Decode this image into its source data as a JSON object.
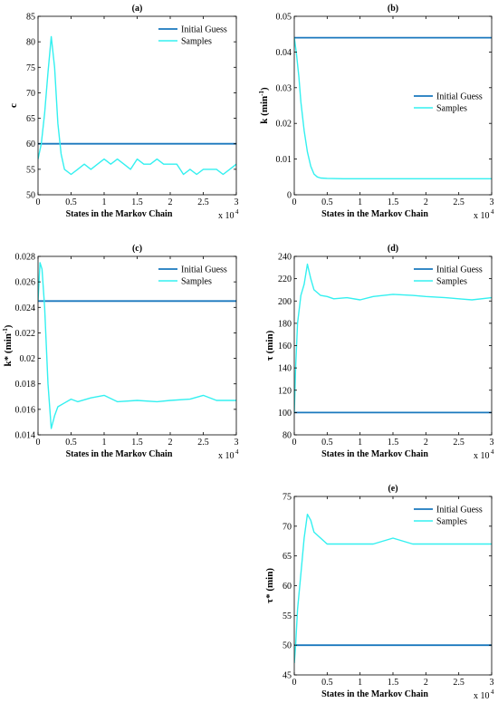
{
  "colors": {
    "initial_guess": "#1a78be",
    "samples": "#33f0f0",
    "axis": "#000000"
  },
  "chart_data": [
    {
      "type": "line",
      "title": "(a)",
      "xlabel": "States in the Markov Chain",
      "ylabel": "c",
      "x_multiplier": "x 10",
      "x_multiplier_exp": "4",
      "xlim": [
        0,
        3
      ],
      "ylim": [
        50,
        85
      ],
      "xticks": [
        "0",
        "0.5",
        "1",
        "1.5",
        "2",
        "2.5",
        "3"
      ],
      "yticks": [
        "50",
        "55",
        "60",
        "65",
        "70",
        "75",
        "80",
        "85"
      ],
      "legend_position": "top-right",
      "legend": [
        "Initial Guess",
        "Samples"
      ],
      "series": [
        {
          "name": "Initial Guess",
          "x": [
            0,
            3
          ],
          "y": [
            60,
            60
          ]
        },
        {
          "name": "Samples",
          "x": [
            0,
            0.05,
            0.1,
            0.15,
            0.2,
            0.25,
            0.3,
            0.35,
            0.4,
            0.5,
            0.6,
            0.7,
            0.8,
            0.9,
            1.0,
            1.1,
            1.2,
            1.3,
            1.4,
            1.5,
            1.6,
            1.7,
            1.8,
            1.9,
            2.0,
            2.1,
            2.2,
            2.3,
            2.4,
            2.5,
            2.6,
            2.7,
            2.8,
            2.9,
            3.0
          ],
          "y": [
            57,
            60,
            66,
            74,
            81,
            75,
            64,
            58,
            55,
            54,
            55,
            56,
            55,
            56,
            57,
            56,
            57,
            56,
            55,
            57,
            56,
            56,
            57,
            56,
            56,
            56,
            54,
            55,
            54,
            55,
            55,
            55,
            54,
            55,
            56
          ]
        }
      ]
    },
    {
      "type": "line",
      "title": "(b)",
      "xlabel": "States in the Markov Chain",
      "ylabel": "k (min",
      "ylabel_sup": "-1",
      "ylabel_end": ")",
      "x_multiplier": "x 10",
      "x_multiplier_exp": "4",
      "xlim": [
        0,
        3
      ],
      "ylim": [
        0,
        0.05
      ],
      "xticks": [
        "0",
        "0.5",
        "1",
        "1.5",
        "2",
        "2.5",
        "3"
      ],
      "yticks": [
        "0",
        "0.01",
        "0.02",
        "0.03",
        "0.04",
        "0.05"
      ],
      "legend_position": "middle-right",
      "legend": [
        "Initial Guess",
        "Samples"
      ],
      "series": [
        {
          "name": "Initial Guess",
          "x": [
            0,
            3
          ],
          "y": [
            0.044,
            0.044
          ]
        },
        {
          "name": "Samples",
          "x": [
            0,
            0.03,
            0.07,
            0.1,
            0.15,
            0.2,
            0.25,
            0.3,
            0.35,
            0.4,
            0.5,
            0.75,
            1.0,
            1.5,
            2.0,
            2.5,
            3.0
          ],
          "y": [
            0.044,
            0.04,
            0.033,
            0.026,
            0.018,
            0.012,
            0.008,
            0.0058,
            0.005,
            0.0047,
            0.0046,
            0.0045,
            0.0045,
            0.0045,
            0.0045,
            0.0045,
            0.0045
          ]
        }
      ]
    },
    {
      "type": "line",
      "title": "(c)",
      "xlabel": "States in the Markov Chain",
      "ylabel": "k* (min",
      "ylabel_sup": "-1",
      "ylabel_end": ")",
      "x_multiplier": "x 10",
      "x_multiplier_exp": "4",
      "xlim": [
        0,
        3
      ],
      "ylim": [
        0.014,
        0.028
      ],
      "xticks": [
        "0",
        "0.5",
        "1",
        "1.5",
        "2",
        "2.5",
        "3"
      ],
      "yticks": [
        "0.014",
        "0.016",
        "0.018",
        "0.02",
        "0.022",
        "0.024",
        "0.026",
        "0.028"
      ],
      "legend_position": "top-right",
      "legend": [
        "Initial Guess",
        "Samples"
      ],
      "series": [
        {
          "name": "Initial Guess",
          "x": [
            0,
            3
          ],
          "y": [
            0.0245,
            0.0245
          ]
        },
        {
          "name": "Samples",
          "x": [
            0,
            0.03,
            0.06,
            0.1,
            0.15,
            0.2,
            0.25,
            0.3,
            0.4,
            0.5,
            0.6,
            0.8,
            1.0,
            1.2,
            1.5,
            1.8,
            2.0,
            2.3,
            2.5,
            2.7,
            3.0
          ],
          "y": [
            0.0245,
            0.0275,
            0.027,
            0.024,
            0.018,
            0.0145,
            0.0155,
            0.0162,
            0.0165,
            0.0168,
            0.0166,
            0.0169,
            0.0171,
            0.0166,
            0.0167,
            0.0166,
            0.0167,
            0.0168,
            0.0171,
            0.0167,
            0.0167
          ]
        }
      ]
    },
    {
      "type": "line",
      "title": "(d)",
      "xlabel": "States in the Markov Chain",
      "ylabel": "τ (min)",
      "x_multiplier": "x 10",
      "x_multiplier_exp": "4",
      "xlim": [
        0,
        3
      ],
      "ylim": [
        80,
        240
      ],
      "xticks": [
        "0",
        "0.5",
        "1",
        "1.5",
        "2",
        "2.5",
        "3"
      ],
      "yticks": [
        "80",
        "100",
        "120",
        "140",
        "160",
        "180",
        "200",
        "220",
        "240"
      ],
      "legend_position": "top-right",
      "legend": [
        "Initial Guess",
        "Samples"
      ],
      "series": [
        {
          "name": "Initial Guess",
          "x": [
            0,
            3
          ],
          "y": [
            100,
            100
          ]
        },
        {
          "name": "Samples",
          "x": [
            0,
            0.02,
            0.05,
            0.1,
            0.15,
            0.2,
            0.25,
            0.3,
            0.4,
            0.5,
            0.6,
            0.8,
            1.0,
            1.2,
            1.5,
            1.8,
            2.0,
            2.3,
            2.5,
            2.7,
            3.0
          ],
          "y": [
            100,
            140,
            180,
            205,
            215,
            233,
            220,
            210,
            205,
            204,
            202,
            203,
            201,
            204,
            206,
            205,
            204,
            203,
            202,
            201,
            203
          ]
        }
      ]
    },
    {
      "type": "line",
      "title": "(e)",
      "xlabel": "States in the Markov Chain",
      "ylabel": "τ* (min)",
      "x_multiplier": "x 10",
      "x_multiplier_exp": "4",
      "xlim": [
        0,
        3
      ],
      "ylim": [
        45,
        75
      ],
      "xticks": [
        "0",
        "0.5",
        "1",
        "1.5",
        "2",
        "2.5",
        "3"
      ],
      "yticks": [
        "45",
        "50",
        "55",
        "60",
        "65",
        "70",
        "75"
      ],
      "legend_position": "top-right",
      "legend": [
        "Initial Guess",
        "Samples"
      ],
      "series": [
        {
          "name": "Initial Guess",
          "x": [
            0,
            3
          ],
          "y": [
            50,
            50
          ]
        },
        {
          "name": "Samples",
          "x": [
            0,
            0.02,
            0.05,
            0.1,
            0.15,
            0.2,
            0.25,
            0.3,
            0.4,
            0.5,
            0.6,
            0.8,
            1.0,
            1.2,
            1.5,
            1.8,
            2.0,
            2.3,
            2.5,
            2.7,
            3.0
          ],
          "y": [
            47,
            50,
            56,
            62,
            68,
            72,
            71,
            69,
            68,
            67,
            67,
            67,
            67,
            67,
            68,
            67,
            67,
            67,
            67,
            67,
            67
          ]
        }
      ]
    }
  ]
}
